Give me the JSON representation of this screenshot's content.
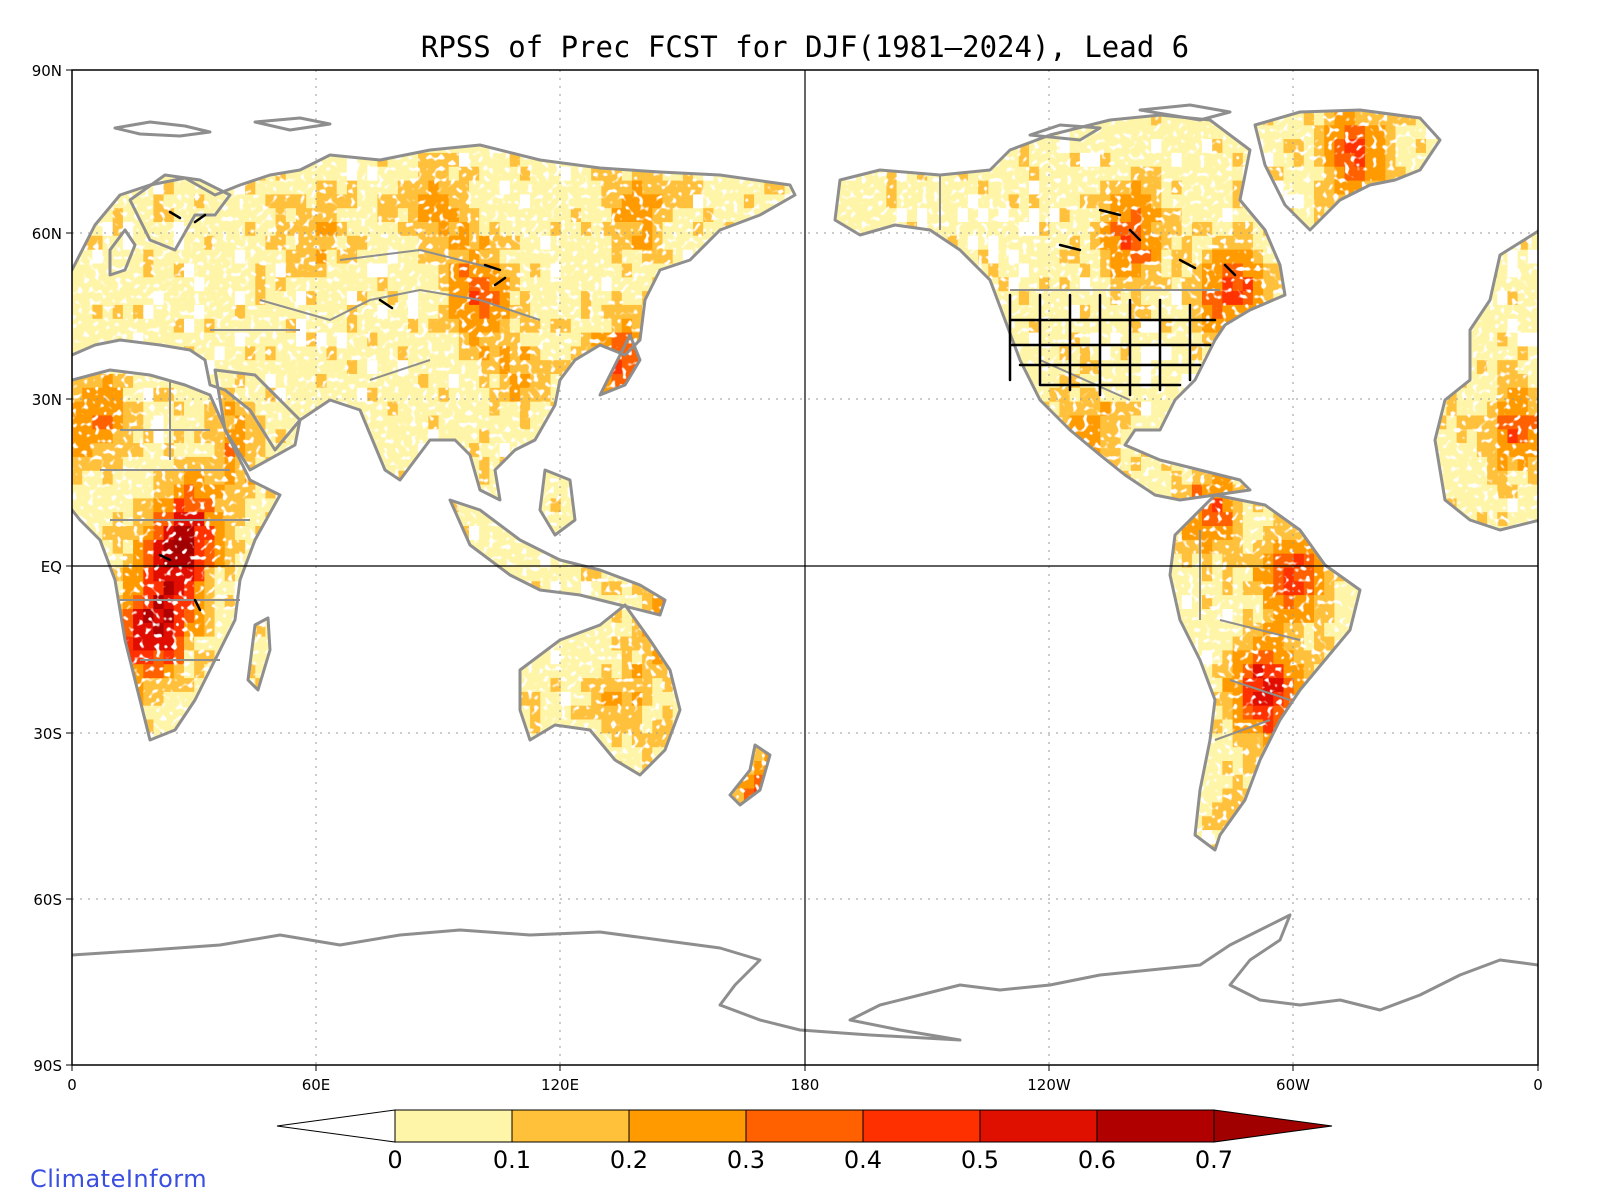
{
  "chart_data": {
    "type": "heatmap",
    "title": "RPSS of Prec FCST for DJF(1981–2024), Lead 6",
    "projection": "cylindrical equidistant, centered 180",
    "lon_range": [
      0,
      360
    ],
    "lat_range": [
      -90,
      90
    ],
    "x_ticks": [
      "0",
      "60E",
      "120E",
      "180",
      "120W",
      "60W",
      "0"
    ],
    "y_ticks": [
      "90N",
      "60N",
      "30N",
      "EQ",
      "30S",
      "60S",
      "90S"
    ],
    "colorbar": {
      "labels": [
        "0",
        "0.1",
        "0.2",
        "0.3",
        "0.4",
        "0.5",
        "0.6",
        "0.7"
      ],
      "levels": [
        0,
        0.1,
        0.2,
        0.3,
        0.4,
        0.5,
        0.6,
        0.7
      ],
      "colors": [
        "#ffffff",
        "#fff5a8",
        "#ffc03a",
        "#ff9a00",
        "#ff6000",
        "#ff3000",
        "#e01000",
        "#b00000",
        "#a00000"
      ],
      "extend": "both"
    },
    "regions": [
      {
        "lon": 25,
        "lat": 2,
        "value": 0.5
      },
      {
        "lon": 22,
        "lat": -10,
        "value": 0.45
      },
      {
        "lon": 15,
        "lat": -15,
        "value": 0.3
      },
      {
        "lon": 30,
        "lat": 8,
        "value": 0.3
      },
      {
        "lon": 5,
        "lat": 27,
        "value": 0.3
      },
      {
        "lon": 40,
        "lat": 22,
        "value": 0.2
      },
      {
        "lon": 60,
        "lat": 60,
        "value": 0.15
      },
      {
        "lon": 90,
        "lat": 65,
        "value": 0.2
      },
      {
        "lon": 100,
        "lat": 50,
        "value": 0.35
      },
      {
        "lon": 110,
        "lat": 35,
        "value": 0.15
      },
      {
        "lon": 135,
        "lat": 37,
        "value": 0.35
      },
      {
        "lon": 140,
        "lat": 65,
        "value": 0.2
      },
      {
        "lon": 135,
        "lat": -25,
        "value": 0.15
      },
      {
        "lon": 148,
        "lat": -10,
        "value": 0.35
      },
      {
        "lon": 170,
        "lat": -43,
        "value": 0.4
      },
      {
        "lon": 260,
        "lat": 60,
        "value": 0.35
      },
      {
        "lon": 285,
        "lat": 50,
        "value": 0.4
      },
      {
        "lon": 250,
        "lat": 25,
        "value": 0.2
      },
      {
        "lon": 280,
        "lat": 10,
        "value": 0.3
      },
      {
        "lon": 300,
        "lat": -2,
        "value": 0.4
      },
      {
        "lon": 293,
        "lat": -22,
        "value": 0.5
      },
      {
        "lon": 300,
        "lat": -35,
        "value": 0.2
      },
      {
        "lon": 290,
        "lat": -50,
        "value": 0.3
      },
      {
        "lon": 315,
        "lat": 75,
        "value": 0.35
      },
      {
        "lon": 355,
        "lat": 25,
        "value": 0.3
      }
    ]
  },
  "branding": "ClimateInform"
}
